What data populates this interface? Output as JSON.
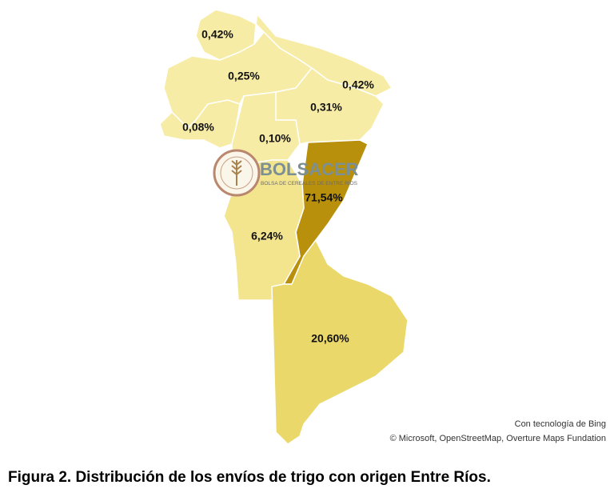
{
  "regions": [
    {
      "value": 0.42,
      "label": "0,42%",
      "color": "#f7eca6"
    },
    {
      "value": 0.25,
      "label": "0,25%",
      "color": "#f7eca6"
    },
    {
      "value": 0.42,
      "label": "0,42%",
      "color": "#f7eca6"
    },
    {
      "value": 0.31,
      "label": "0,31%",
      "color": "#f7eca6"
    },
    {
      "value": 0.08,
      "label": "0,08%",
      "color": "#f7eca6"
    },
    {
      "value": 0.1,
      "label": "0,10%",
      "color": "#f7eca6"
    },
    {
      "value": 71.54,
      "label": "71,54%",
      "color": "#b8900c"
    },
    {
      "value": 6.24,
      "label": "6,24%",
      "color": "#f3e48e"
    },
    {
      "value": 20.6,
      "label": "20,60%",
      "color": "#ebd86a"
    }
  ],
  "logo": {
    "name": "BOLSACER",
    "subtitle": "BOLSA DE CEREALES DE ENTRE RÍOS"
  },
  "attribution": [
    "Con tecnología de Bing",
    "© Microsoft, OpenStreetMap, Overture Maps Fundation"
  ],
  "caption": "Figura 2. Distribución de los envíos de trigo con origen Entre Ríos."
}
